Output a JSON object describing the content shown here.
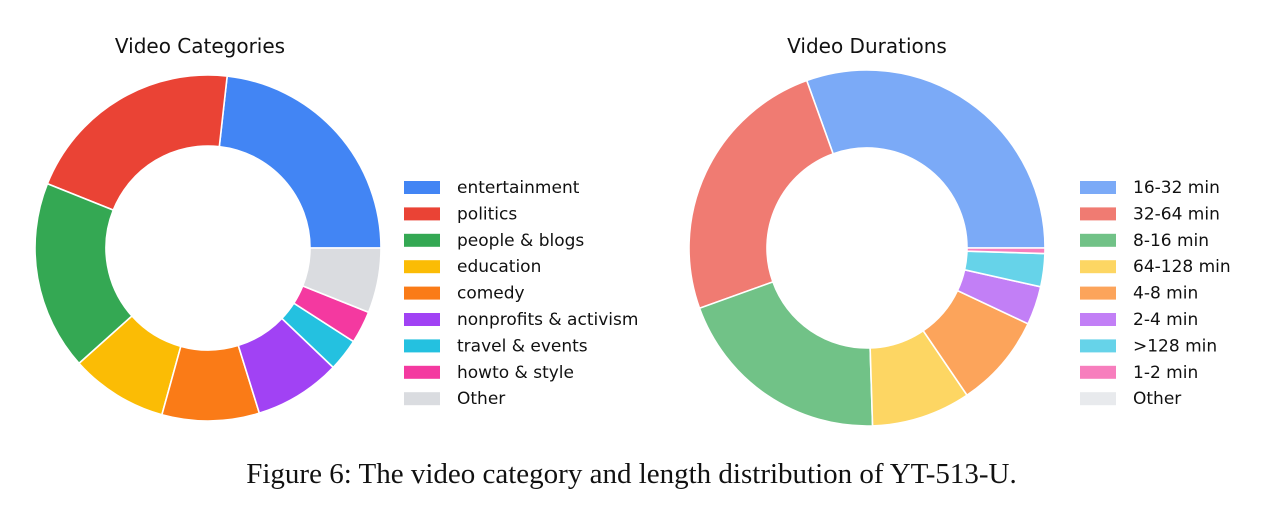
{
  "caption": "Figure 6: The video category and length distribution of YT-513-U.",
  "chart_data": [
    {
      "type": "pie",
      "variant": "donut",
      "title": "Video Categories",
      "legend_placement": "right",
      "slices": [
        {
          "label": "entertainment",
          "value": 23.0,
          "color": "#4285F4"
        },
        {
          "label": "politics",
          "value": 20.5,
          "color": "#EA4335"
        },
        {
          "label": "people & blogs",
          "value": 17.5,
          "color": "#34A853"
        },
        {
          "label": "education",
          "value": 9.0,
          "color": "#FBBC05"
        },
        {
          "label": "comedy",
          "value": 9.0,
          "color": "#FA7B17"
        },
        {
          "label": "nonprofits & activism",
          "value": 8.0,
          "color": "#A142F4"
        },
        {
          "label": "travel & events",
          "value": 3.0,
          "color": "#24C1E0"
        },
        {
          "label": "howto & style",
          "value": 3.0,
          "color": "#F439A0"
        },
        {
          "label": "Other",
          "value": 6.0,
          "color": "#DADCE0"
        }
      ]
    },
    {
      "type": "pie",
      "variant": "donut",
      "title": "Video Durations",
      "legend_placement": "right",
      "slices": [
        {
          "label": "16-32 min",
          "value": 30.5,
          "color": "#7BAAF7"
        },
        {
          "label": "32-64 min",
          "value": 25.0,
          "color": "#F07B72"
        },
        {
          "label": "8-16 min",
          "value": 20.0,
          "color": "#71C287"
        },
        {
          "label": "64-128 min",
          "value": 9.0,
          "color": "#FDD663"
        },
        {
          "label": "4-8 min",
          "value": 8.5,
          "color": "#FCA45B"
        },
        {
          "label": "2-4 min",
          "value": 3.5,
          "color": "#C27FF6"
        },
        {
          "label": ">128 min",
          "value": 3.0,
          "color": "#66D3E9"
        },
        {
          "label": "1-2 min",
          "value": 0.5,
          "color": "#F77EBD"
        },
        {
          "label": "Other",
          "value": 0.0,
          "color": "#E8EAED"
        }
      ]
    }
  ]
}
